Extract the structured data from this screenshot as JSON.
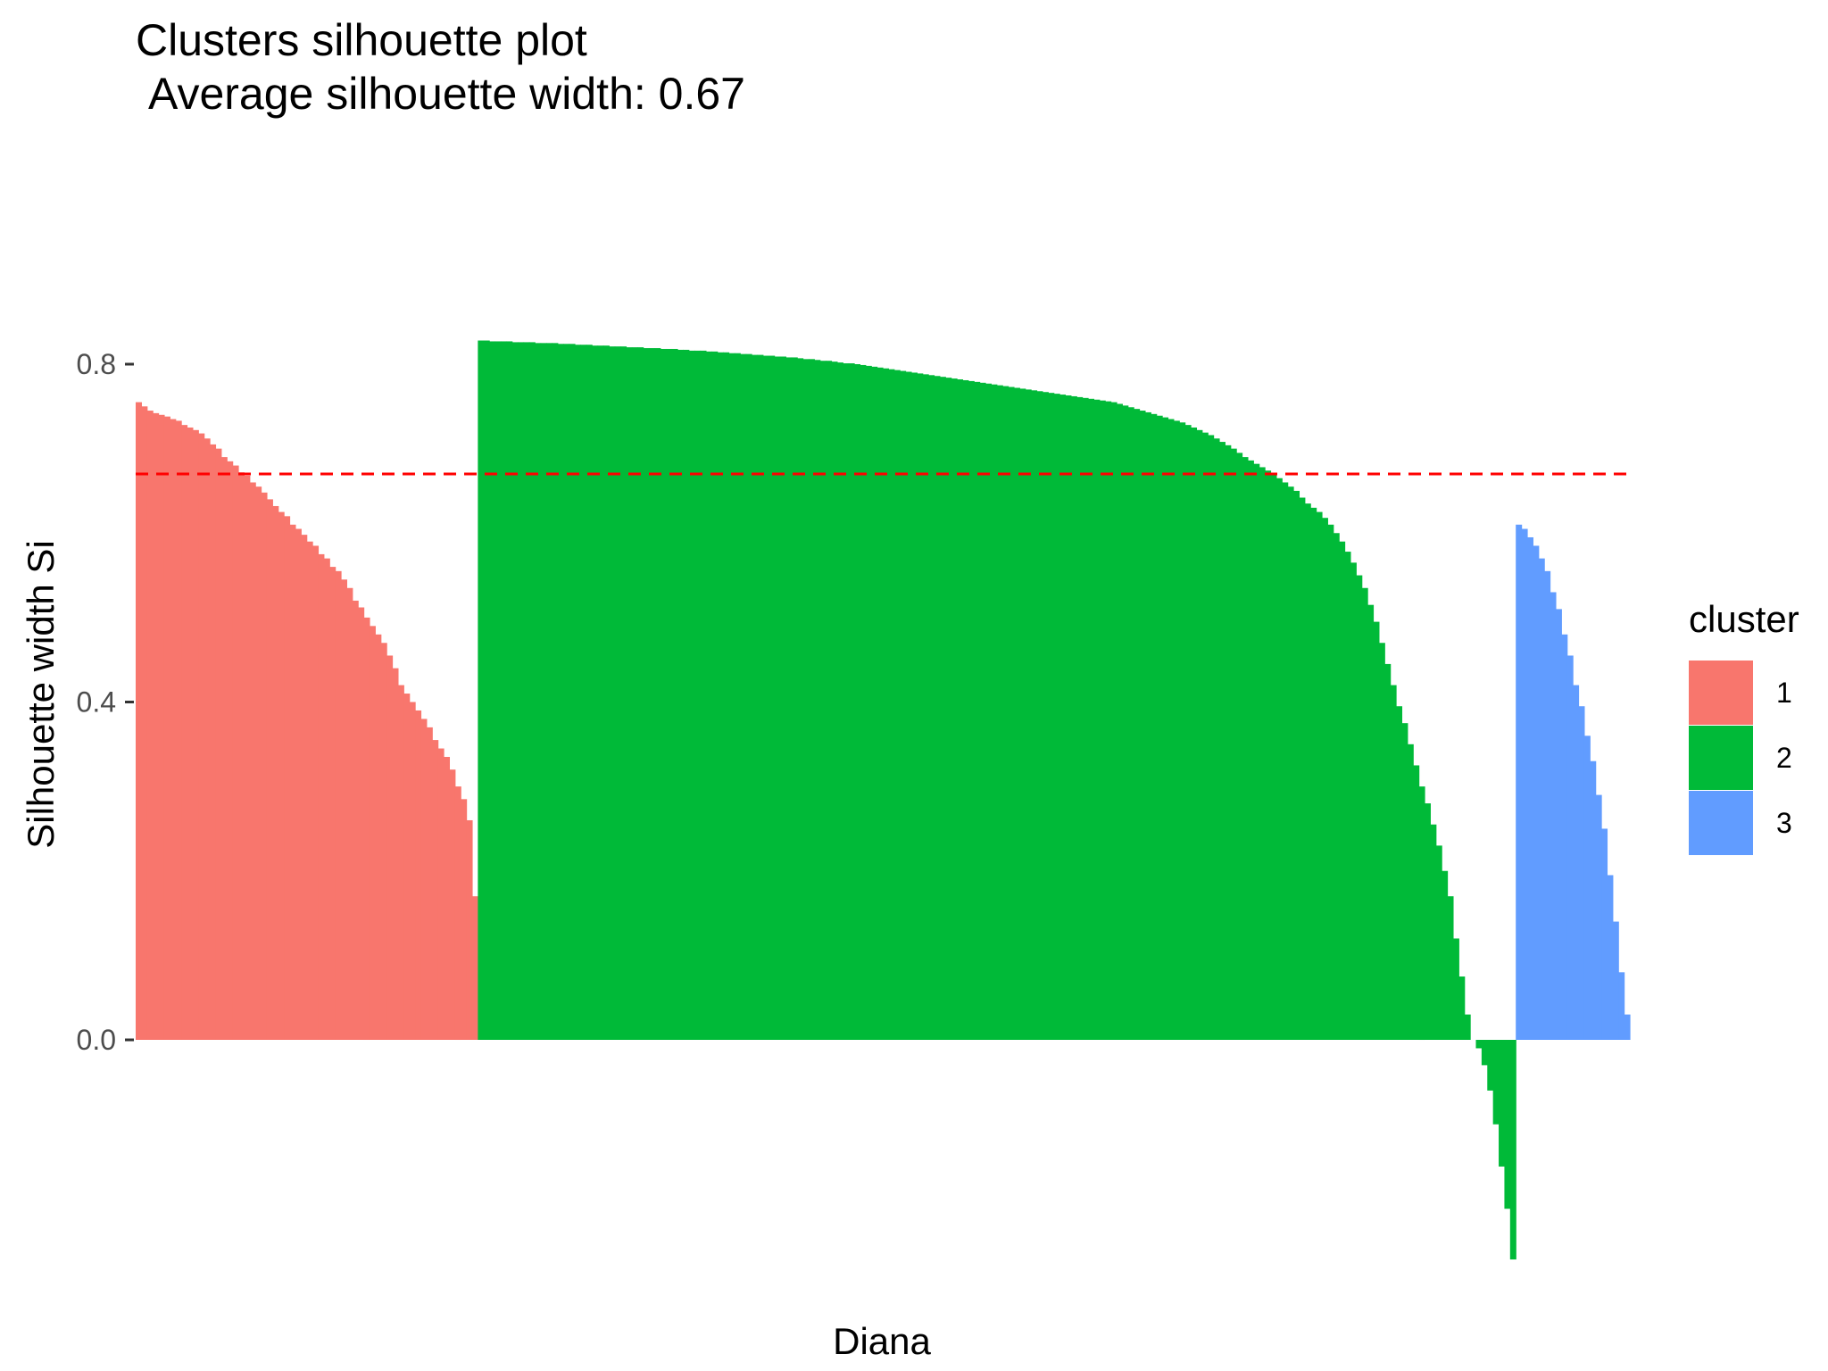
{
  "chart_data": {
    "type": "bar",
    "title": "Clusters silhouette plot",
    "subtitle": "Average silhouette width: 0.67",
    "xlabel": "Diana",
    "ylabel": "Silhouette width Si",
    "ylim": [
      -0.26,
      0.82
    ],
    "yticks": [
      "0.0",
      "0.4",
      "0.8"
    ],
    "grid": false,
    "average_line": {
      "value": 0.67,
      "color": "#ff0000",
      "style": "dashed"
    },
    "legend": {
      "title": "cluster",
      "position": "right"
    },
    "series": [
      {
        "name": "1",
        "color": "#f8766d",
        "values": [
          0.755,
          0.75,
          0.745,
          0.742,
          0.74,
          0.738,
          0.735,
          0.733,
          0.728,
          0.725,
          0.722,
          0.718,
          0.712,
          0.705,
          0.7,
          0.69,
          0.685,
          0.68,
          0.672,
          0.668,
          0.66,
          0.655,
          0.648,
          0.64,
          0.632,
          0.625,
          0.62,
          0.61,
          0.605,
          0.598,
          0.59,
          0.585,
          0.575,
          0.57,
          0.56,
          0.555,
          0.545,
          0.535,
          0.52,
          0.512,
          0.5,
          0.49,
          0.48,
          0.47,
          0.455,
          0.44,
          0.42,
          0.41,
          0.4,
          0.39,
          0.38,
          0.37,
          0.355,
          0.345,
          0.335,
          0.32,
          0.3,
          0.285,
          0.26,
          0.17
        ]
      },
      {
        "name": "2",
        "color": "#00ba38",
        "values": [
          0.828,
          0.828,
          0.827,
          0.827,
          0.827,
          0.827,
          0.826,
          0.826,
          0.826,
          0.826,
          0.825,
          0.825,
          0.825,
          0.825,
          0.824,
          0.824,
          0.824,
          0.823,
          0.823,
          0.823,
          0.822,
          0.822,
          0.822,
          0.821,
          0.821,
          0.821,
          0.82,
          0.82,
          0.82,
          0.819,
          0.819,
          0.819,
          0.818,
          0.818,
          0.818,
          0.817,
          0.817,
          0.816,
          0.816,
          0.816,
          0.815,
          0.815,
          0.814,
          0.814,
          0.813,
          0.813,
          0.812,
          0.812,
          0.811,
          0.811,
          0.81,
          0.81,
          0.809,
          0.809,
          0.808,
          0.808,
          0.807,
          0.806,
          0.806,
          0.805,
          0.804,
          0.804,
          0.803,
          0.802,
          0.801,
          0.801,
          0.8,
          0.799,
          0.798,
          0.797,
          0.796,
          0.795,
          0.794,
          0.793,
          0.792,
          0.791,
          0.79,
          0.789,
          0.788,
          0.787,
          0.786,
          0.785,
          0.784,
          0.783,
          0.782,
          0.781,
          0.78,
          0.779,
          0.778,
          0.777,
          0.776,
          0.775,
          0.774,
          0.773,
          0.772,
          0.771,
          0.77,
          0.769,
          0.768,
          0.767,
          0.766,
          0.765,
          0.764,
          0.763,
          0.762,
          0.761,
          0.76,
          0.759,
          0.758,
          0.757,
          0.756,
          0.755,
          0.753,
          0.751,
          0.749,
          0.747,
          0.745,
          0.743,
          0.741,
          0.739,
          0.737,
          0.735,
          0.733,
          0.731,
          0.728,
          0.725,
          0.722,
          0.719,
          0.716,
          0.712,
          0.708,
          0.704,
          0.7,
          0.695,
          0.69,
          0.686,
          0.682,
          0.678,
          0.674,
          0.67,
          0.665,
          0.66,
          0.655,
          0.65,
          0.642,
          0.635,
          0.63,
          0.625,
          0.618,
          0.61,
          0.6,
          0.59,
          0.578,
          0.565,
          0.55,
          0.535,
          0.515,
          0.495,
          0.47,
          0.445,
          0.42,
          0.395,
          0.375,
          0.35,
          0.325,
          0.3,
          0.28,
          0.255,
          0.23,
          0.2,
          0.17,
          0.12,
          0.075,
          0.03,
          0.0,
          -0.01,
          -0.03,
          -0.06,
          -0.1,
          -0.15,
          -0.2,
          -0.26
        ]
      },
      {
        "name": "3",
        "color": "#619cff",
        "values": [
          0.61,
          0.605,
          0.595,
          0.585,
          0.57,
          0.555,
          0.53,
          0.51,
          0.48,
          0.455,
          0.42,
          0.395,
          0.36,
          0.33,
          0.29,
          0.25,
          0.195,
          0.14,
          0.08,
          0.03
        ]
      }
    ]
  }
}
